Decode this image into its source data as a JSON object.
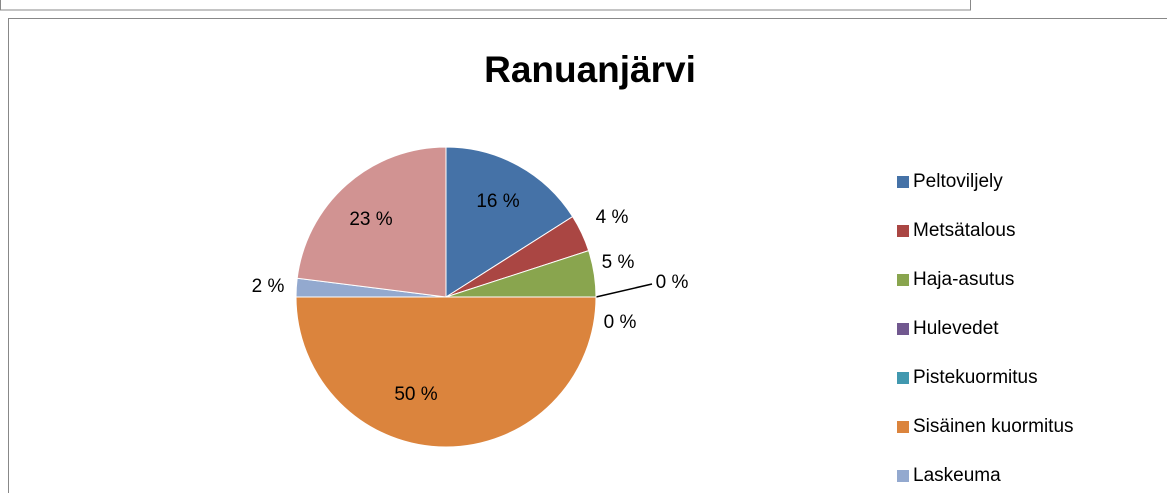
{
  "chart_data": {
    "type": "pie",
    "title": "Ranuanjärvi",
    "categories": [
      "Peltoviljely",
      "Metsätalous",
      "Haja-asutus",
      "Hulevedet",
      "Pistekuormitus",
      "Sisäinen kuormitus",
      "Laskeuma",
      null
    ],
    "values": [
      16,
      4,
      5,
      0,
      0,
      50,
      2,
      23
    ],
    "value_labels": [
      "16 %",
      "4 %",
      "5 %",
      "0 %",
      "0 %",
      "50 %",
      "2 %",
      "23 %"
    ],
    "colors": [
      "#4572a7",
      "#aa4643",
      "#89a54e",
      "#71588f",
      "#4198af",
      "#db843d",
      "#93a9cf",
      "#d19392"
    ],
    "legend": "right"
  }
}
